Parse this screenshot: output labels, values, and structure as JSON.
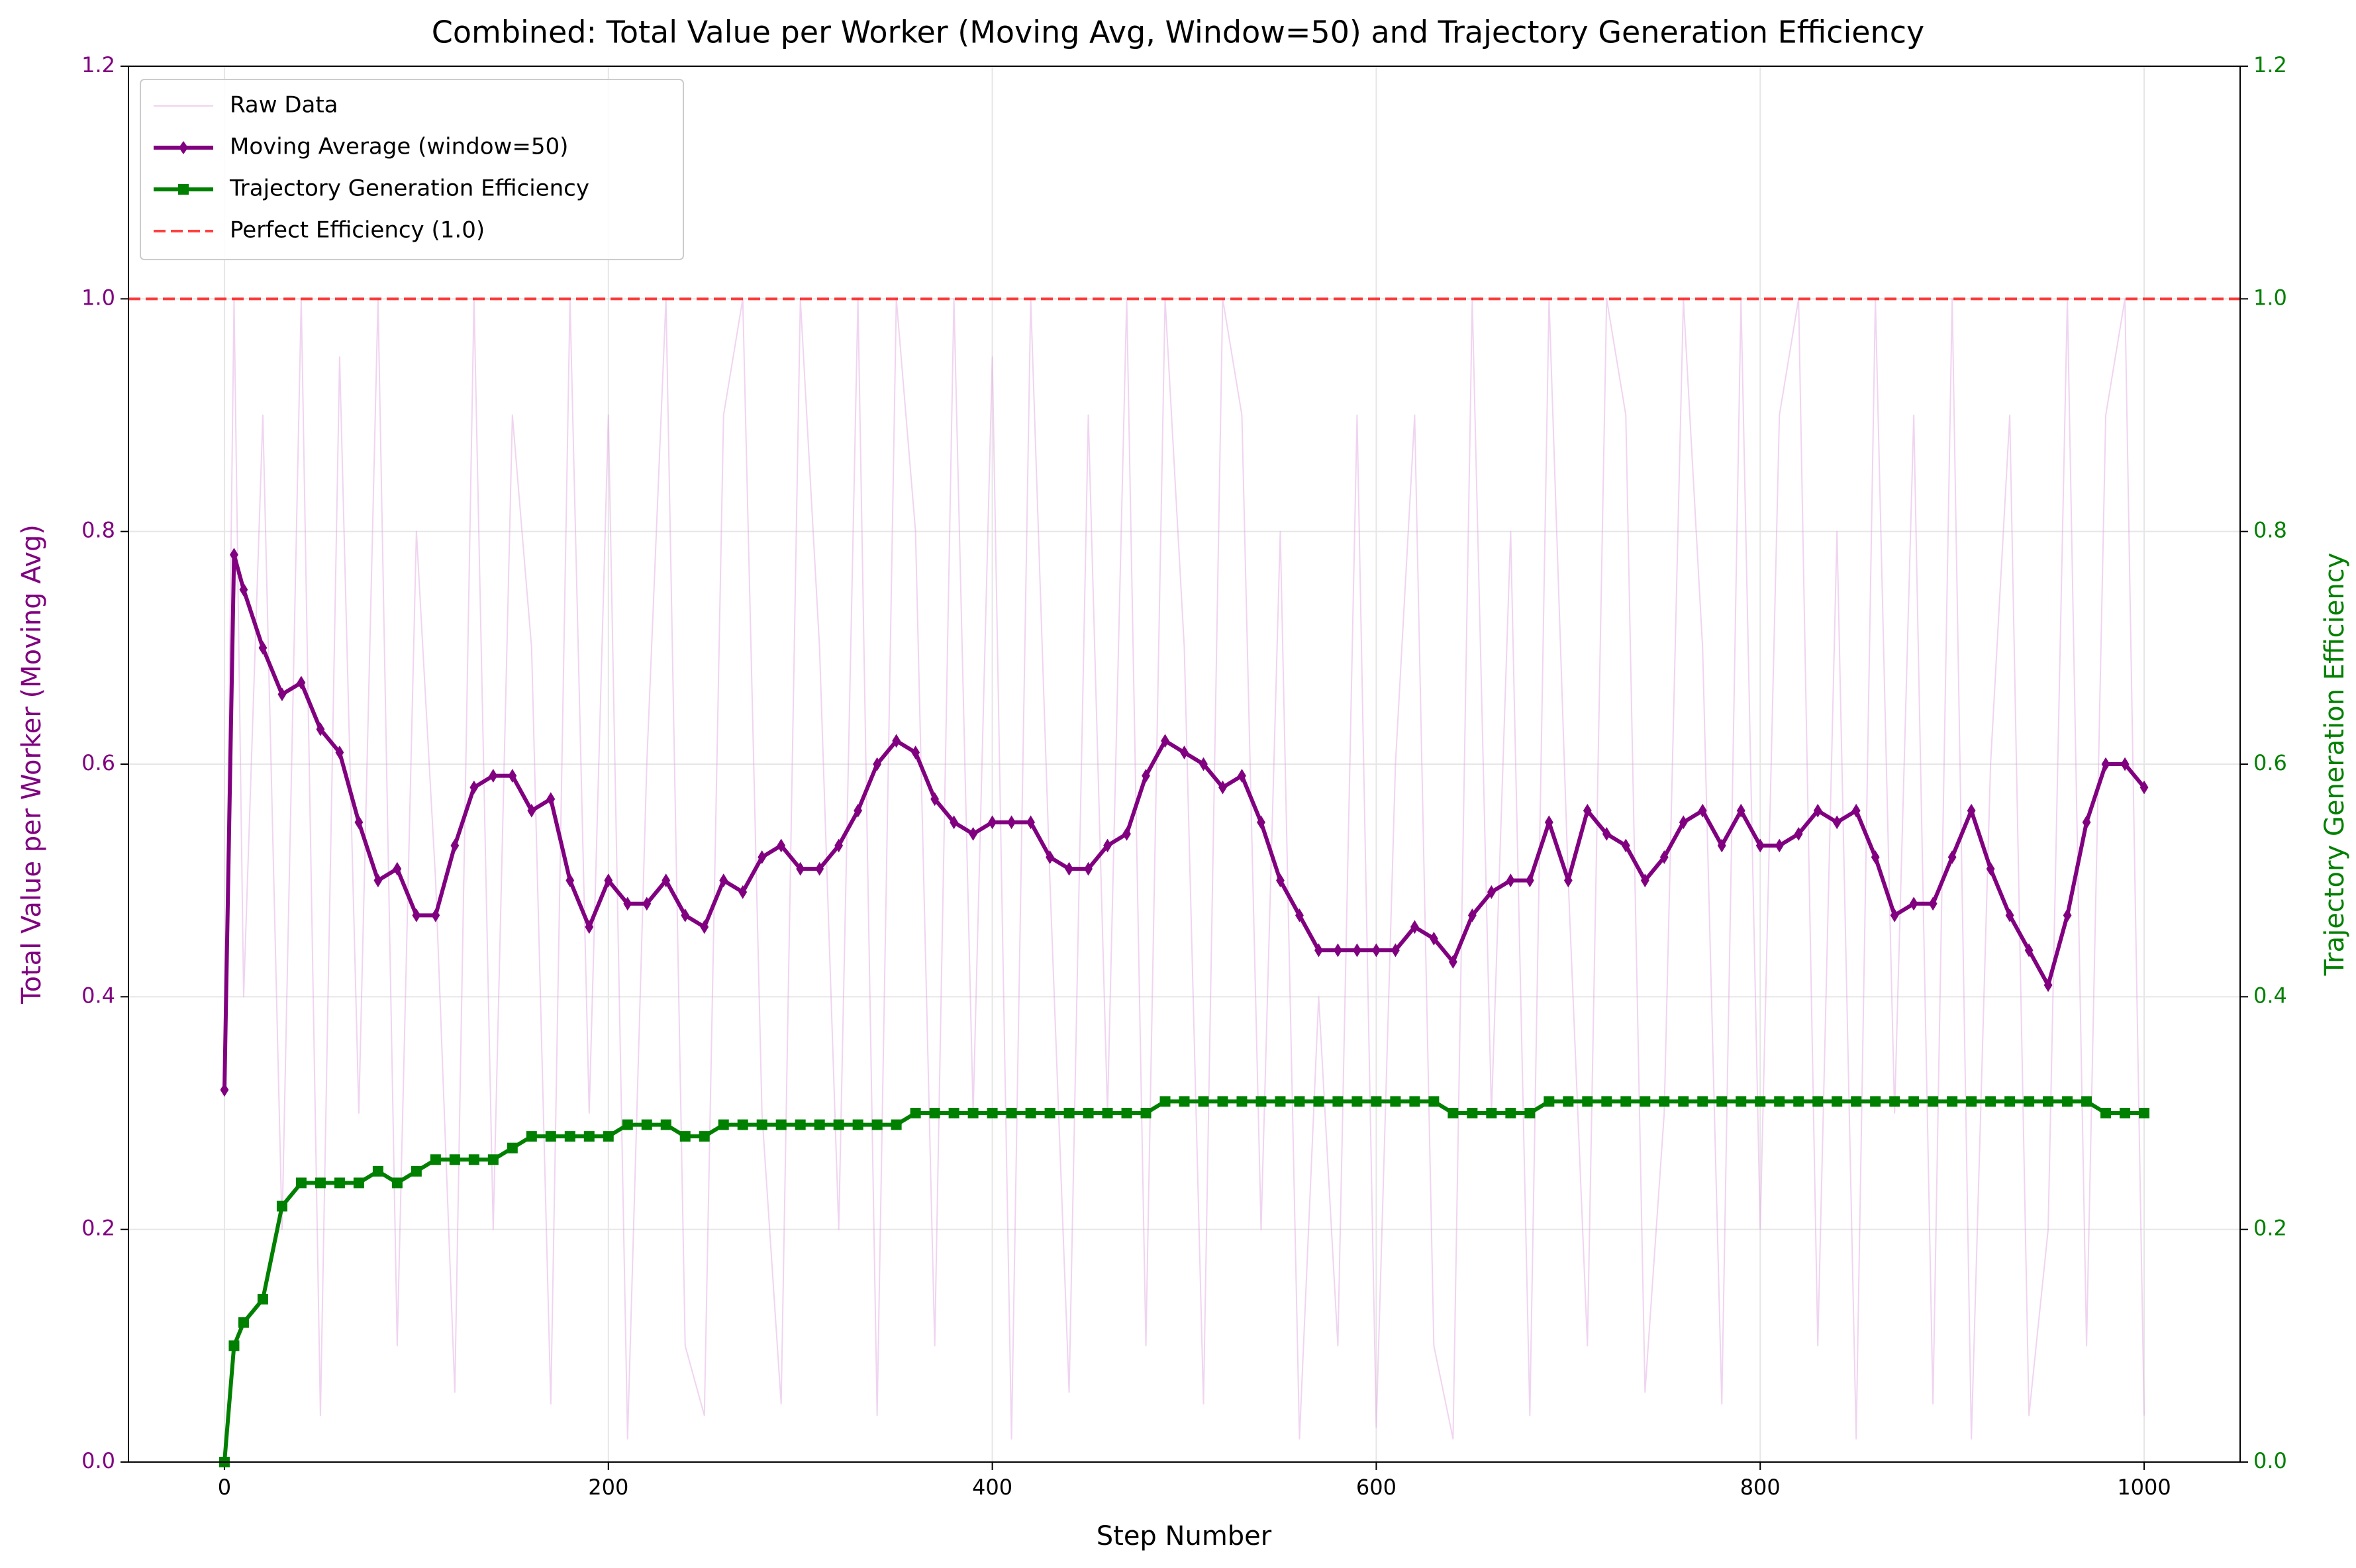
{
  "chart_data": {
    "type": "line",
    "title": "Combined: Total Value per Worker (Moving Avg, Window=50) and Trajectory Generation Efficiency",
    "xlabel": "Step Number",
    "ylabel": "Total Value per Worker (Moving Avg)",
    "y2label": "Trajectory Generation Efficiency",
    "x": [
      0,
      5,
      10,
      20,
      30,
      40,
      50,
      60,
      70,
      80,
      90,
      100,
      110,
      120,
      130,
      140,
      150,
      160,
      170,
      180,
      190,
      200,
      210,
      220,
      230,
      240,
      250,
      260,
      270,
      280,
      290,
      300,
      310,
      320,
      330,
      340,
      350,
      360,
      370,
      380,
      390,
      400,
      410,
      420,
      430,
      440,
      450,
      460,
      470,
      480,
      490,
      500,
      510,
      520,
      530,
      540,
      550,
      560,
      570,
      580,
      590,
      600,
      610,
      620,
      630,
      640,
      650,
      660,
      670,
      680,
      690,
      700,
      710,
      720,
      730,
      740,
      750,
      760,
      770,
      780,
      790,
      800,
      810,
      820,
      830,
      840,
      850,
      860,
      870,
      880,
      890,
      900,
      910,
      920,
      930,
      940,
      950,
      960,
      970,
      980,
      990,
      1000
    ],
    "series": [
      {
        "name": "Raw Data",
        "color": "#dda0dd",
        "marker": "none",
        "values": [
          0.32,
          1.0,
          0.4,
          0.9,
          0.2,
          1.0,
          0.04,
          0.95,
          0.3,
          1.0,
          0.1,
          0.8,
          0.5,
          0.06,
          1.0,
          0.2,
          0.9,
          0.7,
          0.05,
          1.0,
          0.3,
          0.9,
          0.02,
          0.6,
          1.0,
          0.1,
          0.04,
          0.9,
          1.0,
          0.3,
          0.05,
          1.0,
          0.7,
          0.2,
          1.0,
          0.04,
          1.0,
          0.8,
          0.1,
          1.0,
          0.3,
          0.95,
          0.02,
          1.0,
          0.5,
          0.06,
          0.9,
          0.3,
          1.0,
          0.1,
          1.0,
          0.7,
          0.05,
          1.0,
          0.9,
          0.2,
          0.8,
          0.02,
          0.4,
          0.1,
          0.9,
          0.03,
          0.6,
          0.9,
          0.1,
          0.02,
          1.0,
          0.3,
          0.8,
          0.04,
          1.0,
          0.5,
          0.1,
          1.0,
          0.9,
          0.06,
          0.3,
          1.0,
          0.7,
          0.05,
          1.0,
          0.2,
          0.9,
          1.0,
          0.1,
          0.8,
          0.02,
          1.0,
          0.3,
          0.9,
          0.05,
          1.0,
          0.02,
          0.6,
          0.9,
          0.04,
          0.2,
          1.0,
          0.1,
          0.9,
          1.0,
          0.04
        ]
      },
      {
        "name": "Moving Average (window=50)",
        "color": "#800080",
        "marker": "diamond",
        "values": [
          0.32,
          0.78,
          0.75,
          0.7,
          0.66,
          0.67,
          0.63,
          0.61,
          0.55,
          0.5,
          0.51,
          0.47,
          0.47,
          0.53,
          0.58,
          0.59,
          0.59,
          0.56,
          0.57,
          0.5,
          0.46,
          0.5,
          0.48,
          0.48,
          0.5,
          0.47,
          0.46,
          0.5,
          0.49,
          0.52,
          0.53,
          0.51,
          0.51,
          0.53,
          0.56,
          0.6,
          0.62,
          0.61,
          0.57,
          0.55,
          0.54,
          0.55,
          0.55,
          0.55,
          0.52,
          0.51,
          0.51,
          0.53,
          0.54,
          0.59,
          0.62,
          0.61,
          0.6,
          0.58,
          0.59,
          0.55,
          0.5,
          0.47,
          0.44,
          0.44,
          0.44,
          0.44,
          0.44,
          0.46,
          0.45,
          0.43,
          0.47,
          0.49,
          0.5,
          0.5,
          0.55,
          0.5,
          0.56,
          0.54,
          0.53,
          0.5,
          0.52,
          0.55,
          0.56,
          0.53,
          0.56,
          0.53,
          0.53,
          0.54,
          0.56,
          0.55,
          0.56,
          0.52,
          0.47,
          0.48,
          0.48,
          0.52,
          0.56,
          0.51,
          0.47,
          0.44,
          0.41,
          0.47,
          0.55,
          0.6,
          0.6,
          0.58
        ]
      },
      {
        "name": "Trajectory Generation Efficiency",
        "color": "#008000",
        "marker": "square",
        "axis": "y2",
        "values": [
          0,
          0.1,
          0.12,
          0.14,
          0.22,
          0.24,
          0.24,
          0.24,
          0.24,
          0.25,
          0.24,
          0.25,
          0.26,
          0.26,
          0.26,
          0.26,
          0.27,
          0.28,
          0.28,
          0.28,
          0.28,
          0.28,
          0.29,
          0.29,
          0.29,
          0.28,
          0.28,
          0.29,
          0.29,
          0.29,
          0.29,
          0.29,
          0.29,
          0.29,
          0.29,
          0.29,
          0.29,
          0.3,
          0.3,
          0.3,
          0.3,
          0.3,
          0.3,
          0.3,
          0.3,
          0.3,
          0.3,
          0.3,
          0.3,
          0.3,
          0.31,
          0.31,
          0.31,
          0.31,
          0.31,
          0.31,
          0.31,
          0.31,
          0.31,
          0.31,
          0.31,
          0.31,
          0.31,
          0.31,
          0.31,
          0.3,
          0.3,
          0.3,
          0.3,
          0.3,
          0.31,
          0.31,
          0.31,
          0.31,
          0.31,
          0.31,
          0.31,
          0.31,
          0.31,
          0.31,
          0.31,
          0.31,
          0.31,
          0.31,
          0.31,
          0.31,
          0.31,
          0.31,
          0.31,
          0.31,
          0.31,
          0.31,
          0.31,
          0.31,
          0.31,
          0.31,
          0.31,
          0.31,
          0.31,
          0.3,
          0.3,
          0.3
        ]
      }
    ],
    "hlines": [
      {
        "name": "Perfect Efficiency (1.0)",
        "value": 1,
        "color": "#ff0000",
        "dash": true
      }
    ],
    "xlim": [
      -50,
      1050
    ],
    "xticks": [
      0,
      200,
      400,
      600,
      800,
      1000
    ],
    "ylim": [
      0,
      1.2
    ],
    "yticks": [
      {
        "value": 0,
        "label": "0.0"
      },
      {
        "value": 0.2,
        "label": "0.2"
      },
      {
        "value": 0.4,
        "label": "0.4"
      },
      {
        "value": 0.6,
        "label": "0.6"
      },
      {
        "value": 0.8,
        "label": "0.8"
      },
      {
        "value": 1,
        "label": "1.0"
      },
      {
        "value": 1.2,
        "label": "1.2"
      }
    ],
    "y2lim": [
      0,
      1.2
    ],
    "y2ticks": [
      {
        "value": 0,
        "label": "0.0"
      },
      {
        "value": 0.2,
        "label": "0.2"
      },
      {
        "value": 0.4,
        "label": "0.4"
      },
      {
        "value": 0.6,
        "label": "0.6"
      },
      {
        "value": 0.8,
        "label": "0.8"
      },
      {
        "value": 1,
        "label": "1.0"
      },
      {
        "value": 1.2,
        "label": "1.2"
      }
    ],
    "grid": true,
    "legend": "upper left"
  }
}
